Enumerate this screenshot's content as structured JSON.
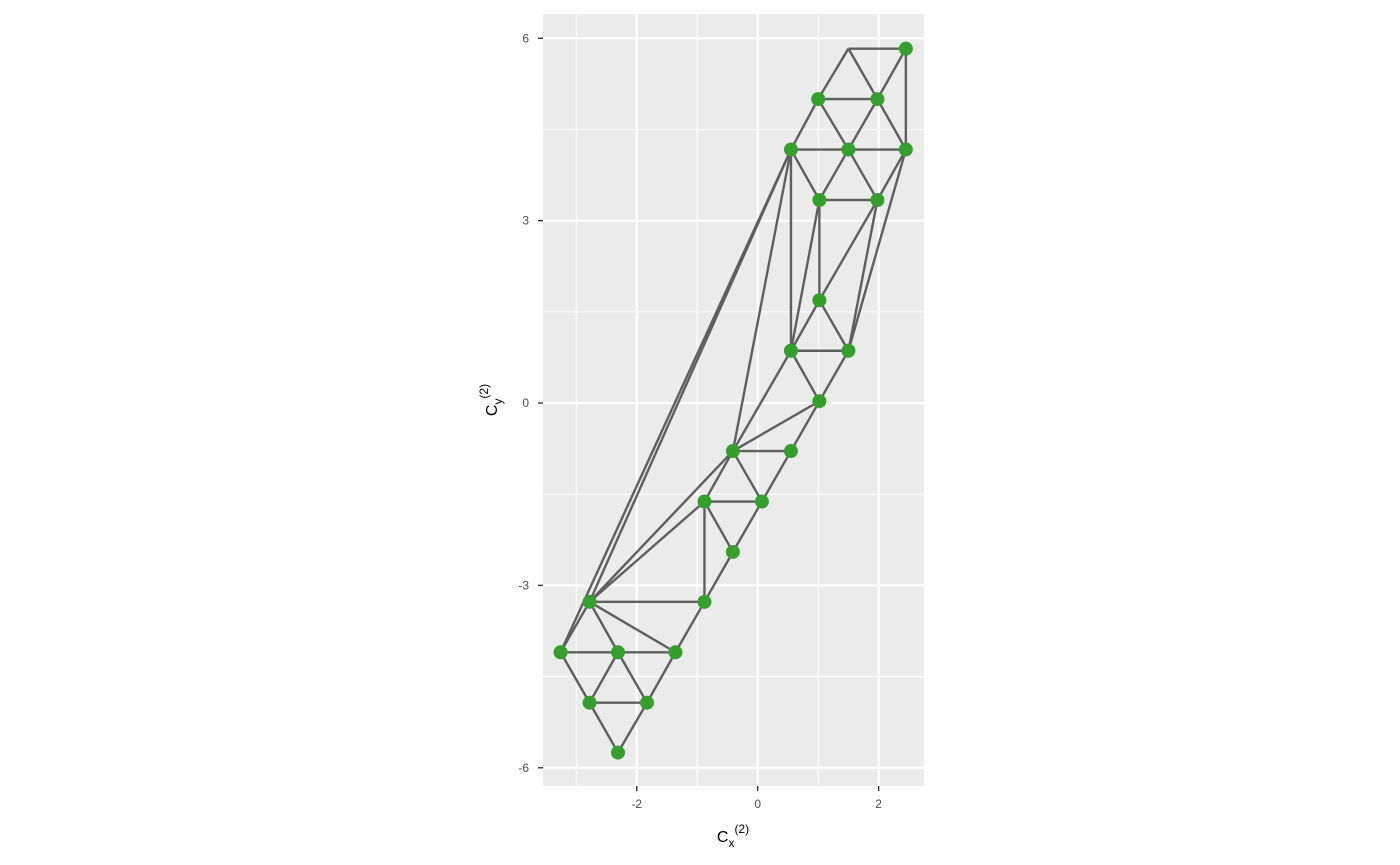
{
  "chart_data": {
    "type": "network",
    "title": "",
    "xlabel": {
      "base": "C",
      "sub": "x",
      "sup": "(2)"
    },
    "ylabel": {
      "base": "C",
      "sub": "y",
      "sup": "(2)"
    },
    "xlim": [
      -3.55,
      2.75
    ],
    "ylim": [
      -6.3,
      6.4
    ],
    "x_ticks": [
      {
        "value": -2,
        "label": "-2"
      },
      {
        "value": 0,
        "label": "0"
      },
      {
        "value": 2,
        "label": "2"
      }
    ],
    "y_ticks": [
      {
        "value": -6,
        "label": "-6"
      },
      {
        "value": -3,
        "label": "-3"
      },
      {
        "value": 0,
        "label": "0"
      },
      {
        "value": 3,
        "label": "3"
      },
      {
        "value": 6,
        "label": "6"
      }
    ],
    "x_minor": [
      -3,
      -1,
      1
    ],
    "y_minor": [
      -4.5,
      -1.5,
      1.5,
      4.5
    ],
    "grid": true,
    "node_color": "#33A02C",
    "edge_color": "#5F5F5F",
    "panel_color": "#EBEBEB",
    "nodes": [
      {
        "id": 0,
        "x": 2.45,
        "y": 5.83
      },
      {
        "id": 1,
        "x": 1.0,
        "y": 5.0
      },
      {
        "id": 2,
        "x": 1.98,
        "y": 5.0
      },
      {
        "id": 3,
        "x": 0.55,
        "y": 4.17
      },
      {
        "id": 4,
        "x": 1.5,
        "y": 4.17
      },
      {
        "id": 5,
        "x": 2.45,
        "y": 4.17
      },
      {
        "id": 6,
        "x": 1.02,
        "y": 3.34
      },
      {
        "id": 7,
        "x": 1.98,
        "y": 3.34
      },
      {
        "id": 8,
        "x": 1.02,
        "y": 1.69
      },
      {
        "id": 9,
        "x": 0.55,
        "y": 0.86
      },
      {
        "id": 10,
        "x": 1.5,
        "y": 0.86
      },
      {
        "id": 11,
        "x": 1.02,
        "y": 0.03
      },
      {
        "id": 12,
        "x": -0.41,
        "y": -0.79
      },
      {
        "id": 13,
        "x": 0.55,
        "y": -0.79
      },
      {
        "id": 14,
        "x": -0.88,
        "y": -1.62
      },
      {
        "id": 15,
        "x": 0.07,
        "y": -1.62
      },
      {
        "id": 16,
        "x": -0.41,
        "y": -2.45
      },
      {
        "id": 17,
        "x": -2.78,
        "y": -3.27
      },
      {
        "id": 18,
        "x": -0.88,
        "y": -3.27
      },
      {
        "id": 19,
        "x": -3.26,
        "y": -4.1
      },
      {
        "id": 20,
        "x": -2.31,
        "y": -4.1
      },
      {
        "id": 21,
        "x": -1.36,
        "y": -4.1
      },
      {
        "id": 22,
        "x": -2.78,
        "y": -4.93
      },
      {
        "id": 23,
        "x": -1.83,
        "y": -4.93
      },
      {
        "id": 24,
        "x": -2.31,
        "y": -5.75
      }
    ],
    "hidden_vertices": [
      {
        "id": "h0",
        "x": 1.5,
        "y": 5.83
      }
    ],
    "edges": [
      [
        "h0",
        0
      ],
      [
        "h0",
        1
      ],
      [
        "h0",
        2
      ],
      [
        0,
        2
      ],
      [
        0,
        5
      ],
      [
        1,
        2
      ],
      [
        1,
        3
      ],
      [
        1,
        4
      ],
      [
        2,
        4
      ],
      [
        2,
        5
      ],
      [
        3,
        4
      ],
      [
        4,
        5
      ],
      [
        3,
        6
      ],
      [
        4,
        6
      ],
      [
        4,
        7
      ],
      [
        5,
        7
      ],
      [
        6,
        7
      ],
      [
        3,
        9
      ],
      [
        6,
        9
      ],
      [
        6,
        8
      ],
      [
        7,
        8
      ],
      [
        7,
        10
      ],
      [
        5,
        10
      ],
      [
        8,
        9
      ],
      [
        8,
        10
      ],
      [
        9,
        10
      ],
      [
        9,
        11
      ],
      [
        10,
        11
      ],
      [
        11,
        12
      ],
      [
        11,
        13
      ],
      [
        9,
        12
      ],
      [
        3,
        12
      ],
      [
        12,
        13
      ],
      [
        12,
        14
      ],
      [
        12,
        15
      ],
      [
        13,
        15
      ],
      [
        14,
        15
      ],
      [
        14,
        16
      ],
      [
        15,
        16
      ],
      [
        14,
        18
      ],
      [
        16,
        18
      ],
      [
        12,
        17
      ],
      [
        14,
        17
      ],
      [
        3,
        17
      ],
      [
        3,
        19
      ],
      [
        17,
        18
      ],
      [
        17,
        19
      ],
      [
        17,
        20
      ],
      [
        17,
        21
      ],
      [
        18,
        21
      ],
      [
        19,
        20
      ],
      [
        20,
        21
      ],
      [
        19,
        22
      ],
      [
        20,
        22
      ],
      [
        20,
        23
      ],
      [
        21,
        23
      ],
      [
        22,
        23
      ],
      [
        22,
        24
      ],
      [
        23,
        24
      ]
    ]
  }
}
